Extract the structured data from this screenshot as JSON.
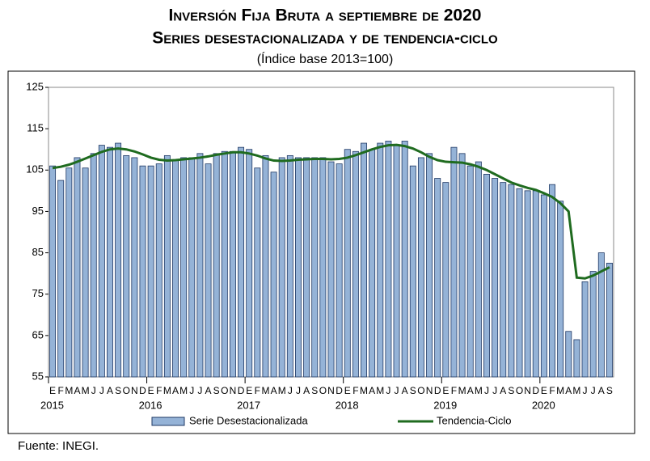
{
  "chart_data": {
    "type": "bar",
    "title": "Inversión Fija Bruta a septiembre de 2020",
    "subtitle": "Series desestacionalizada y de tendencia-ciclo",
    "note": "(Índice base 2013=100)",
    "source": "Fuente: INEGI.",
    "categories": [
      "E",
      "F",
      "M",
      "A",
      "M",
      "J",
      "J",
      "A",
      "S",
      "O",
      "N",
      "D",
      "E",
      "F",
      "M",
      "A",
      "M",
      "J",
      "J",
      "A",
      "S",
      "O",
      "N",
      "D",
      "E",
      "F",
      "M",
      "A",
      "M",
      "J",
      "J",
      "A",
      "S",
      "O",
      "N",
      "D",
      "E",
      "F",
      "M",
      "A",
      "M",
      "J",
      "J",
      "A",
      "S",
      "O",
      "N",
      "D",
      "E",
      "F",
      "M",
      "A",
      "M",
      "J",
      "J",
      "A",
      "S",
      "O",
      "N",
      "D",
      "E",
      "F",
      "M",
      "A",
      "M",
      "J",
      "J",
      "A",
      "S"
    ],
    "years": [
      "2015",
      "2016",
      "2017",
      "2018",
      "2019",
      "2020"
    ],
    "series": [
      {
        "name": "Serie Desestacionalizada",
        "color": "#95b3d7",
        "values": [
          106,
          102.5,
          105.5,
          108,
          105.5,
          109,
          111,
          110.5,
          111.5,
          108.5,
          108,
          106,
          106,
          106.5,
          108.5,
          107.5,
          108,
          108,
          109,
          106.5,
          109,
          109.5,
          109.5,
          110.5,
          110,
          105.5,
          108.5,
          104.5,
          108,
          108.5,
          108,
          108,
          108,
          108,
          107,
          106.5,
          110,
          109.5,
          111.5,
          110,
          111.5,
          112,
          111,
          112,
          106,
          108,
          109,
          103,
          102,
          110.5,
          109,
          106,
          107,
          104,
          103,
          102,
          101.5,
          100.5,
          100,
          100,
          99,
          101.5,
          97.5,
          66,
          64,
          78,
          80.5,
          85,
          82.5
        ]
      },
      {
        "name": "Tendencia-Ciclo",
        "color": "#1f6b1f",
        "values": [
          105.5,
          105.8,
          106.3,
          107,
          107.8,
          108.6,
          109.4,
          110,
          110.2,
          110,
          109.5,
          108.8,
          108,
          107.5,
          107.3,
          107.4,
          107.6,
          107.8,
          108,
          108.3,
          108.7,
          109,
          109.3,
          109.3,
          109,
          108.5,
          107.8,
          107.3,
          107.2,
          107.3,
          107.5,
          107.6,
          107.7,
          107.7,
          107.6,
          107.7,
          108,
          108.6,
          109.3,
          110,
          110.6,
          111,
          111.1,
          110.8,
          110.2,
          109.3,
          108.2,
          107.4,
          107,
          106.9,
          106.8,
          106.4,
          105.8,
          105,
          104,
          103,
          102,
          101.3,
          100.7,
          100.2,
          99.4,
          98.5,
          97,
          95,
          79,
          78.8,
          79.5,
          80.5,
          81.5
        ]
      }
    ],
    "ylim": [
      55,
      125
    ],
    "yticks": [
      55,
      65,
      75,
      85,
      95,
      105,
      115,
      125
    ]
  }
}
